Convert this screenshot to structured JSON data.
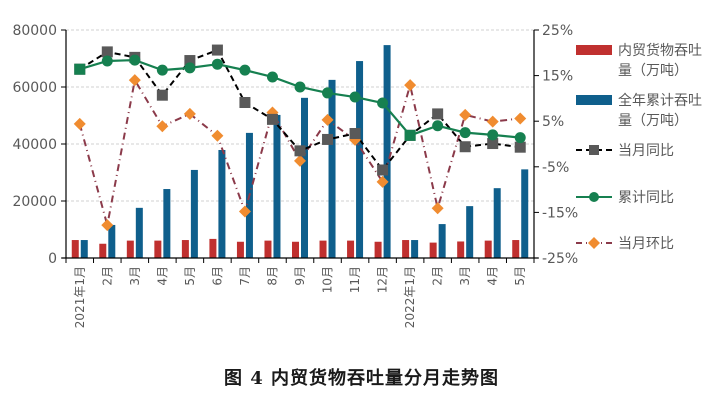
{
  "caption": "图 4  内贸货物吞吐量分月走势图",
  "chart_data": {
    "type": "bar+line",
    "title": "",
    "categories": [
      "2021年1月",
      "2月",
      "3月",
      "4月",
      "5月",
      "6月",
      "7月",
      "8月",
      "9月",
      "10月",
      "11月",
      "12月",
      "2022年1月",
      "2月",
      "3月",
      "4月",
      "5月"
    ],
    "left_axis": {
      "ylim": [
        0,
        80000
      ],
      "ticks": [
        "0",
        "20000",
        "40000",
        "60000",
        "80000"
      ],
      "tick_values": [
        0,
        20000,
        40000,
        60000,
        80000
      ]
    },
    "right_axis": {
      "ylim": [
        -25,
        25
      ],
      "ticks": [
        "-25%",
        "-15%",
        "-5%",
        "5%",
        "15%",
        "25%"
      ],
      "tick_values": [
        -25,
        -15,
        -5,
        5,
        15,
        25
      ]
    },
    "grid": true,
    "legend_position": "right",
    "series": [
      {
        "name": "内贸货物吞吐量（万吨）",
        "type": "bar",
        "axis": "left",
        "color": "#C0302F",
        "values": [
          6300,
          5000,
          6100,
          6100,
          6300,
          6700,
          5700,
          6100,
          5700,
          6100,
          6100,
          5700,
          6300,
          5400,
          5800,
          6100,
          6300
        ]
      },
      {
        "name": "全年累计吞吐量（万吨）",
        "type": "bar",
        "axis": "left",
        "color": "#0F5F8C",
        "values": [
          6300,
          11600,
          17600,
          24200,
          30900,
          37900,
          43900,
          50200,
          56200,
          62500,
          69100,
          74700,
          6300,
          11900,
          18200,
          24500,
          31100
        ]
      },
      {
        "name": "当月同比",
        "type": "line",
        "axis": "right",
        "color": "#595959",
        "line_color": "#000000",
        "marker": "square",
        "values": [
          16.4,
          20.2,
          19.0,
          10.7,
          18.3,
          20.6,
          9.1,
          5.4,
          -1.5,
          1.0,
          2.3,
          -5.7,
          1.9,
          6.6,
          -0.6,
          0.1,
          -0.7
        ]
      },
      {
        "name": "累计同比",
        "type": "line",
        "axis": "right",
        "color": "#168050",
        "marker": "circle",
        "values": [
          16.4,
          18.2,
          18.4,
          16.2,
          16.7,
          17.5,
          16.2,
          14.7,
          12.5,
          11.2,
          10.3,
          9.0,
          1.9,
          4.0,
          2.5,
          2.0,
          1.4
        ]
      },
      {
        "name": "当月环比",
        "type": "line",
        "axis": "right",
        "color": "#F08C30",
        "line_color": "#8B3A4A",
        "marker": "diamond",
        "values": [
          4.4,
          -17.8,
          14.0,
          3.9,
          6.6,
          1.8,
          -14.8,
          6.9,
          -3.7,
          5.3,
          0.9,
          -8.3,
          12.9,
          -14.1,
          6.4,
          4.9,
          5.6
        ]
      }
    ],
    "legend": [
      {
        "line1": "内贸货物吞吐",
        "line2": "量（万吨）"
      },
      {
        "line1": "全年累计吞吐",
        "line2": "量（万吨）"
      },
      {
        "line1": "当月同比"
      },
      {
        "line1": "累计同比"
      },
      {
        "line1": "当月环比"
      }
    ]
  }
}
